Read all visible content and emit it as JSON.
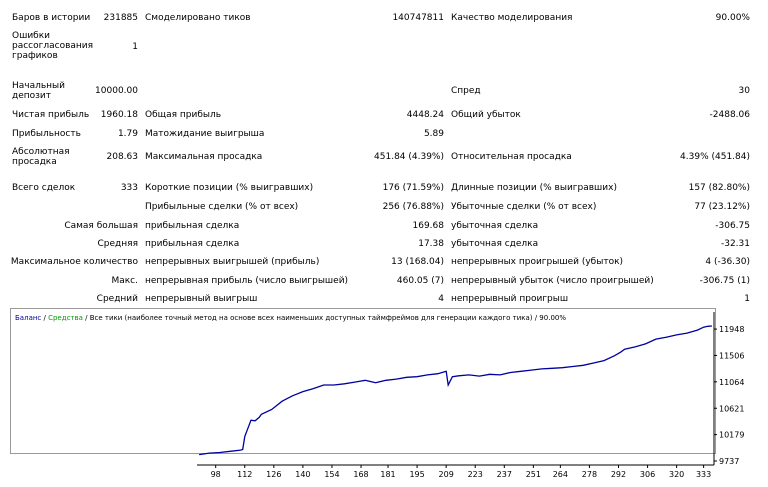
{
  "report": {
    "bars_label": "Баров в истории",
    "bars_value": "231885",
    "ticks_label": "Смоделировано тиков",
    "ticks_value": "140747811",
    "quality_label": "Качество моделирования",
    "quality_value": "90.00%",
    "errors_label": "Ошибки рассогласования графиков",
    "errors_value": "1",
    "deposit_label": "Начальный депозит",
    "deposit_value": "10000.00",
    "spread_label": "Спред",
    "spread_value": "30",
    "net_profit_label": "Чистая прибыль",
    "net_profit_value": "1960.18",
    "gross_profit_label": "Общая прибыль",
    "gross_profit_value": "4448.24",
    "gross_loss_label": "Общий убыток",
    "gross_loss_value": "-2488.06",
    "profit_factor_label": "Прибыльность",
    "profit_factor_value": "1.79",
    "expected_payoff_label": "Матожидание выигрыша",
    "expected_payoff_value": "5.89",
    "abs_dd_label": "Абсолютная просадка",
    "abs_dd_value": "208.63",
    "max_dd_label": "Максимальная просадка",
    "max_dd_value": "451.84 (4.39%)",
    "rel_dd_label": "Относительная просадка",
    "rel_dd_value": "4.39% (451.84)",
    "total_trades_label": "Всего сделок",
    "total_trades_value": "333",
    "short_label": "Короткие позиции (% выигравших)",
    "short_value": "176 (71.59%)",
    "long_label": "Длинные позиции (% выигравших)",
    "long_value": "157 (82.80%)",
    "profit_trades_label": "Прибыльные сделки (% от всех)",
    "profit_trades_value": "256 (76.88%)",
    "loss_trades_label": "Убыточные сделки (% от всех)",
    "loss_trades_value": "77 (23.12%)",
    "largest_label": "Самая большая",
    "largest_profit_label": "прибыльная сделка",
    "largest_profit_value": "169.68",
    "largest_loss_label": "убыточная сделка",
    "largest_loss_value": "-306.75",
    "average_label": "Средняя",
    "average_profit_label": "прибыльная сделка",
    "average_profit_value": "17.38",
    "average_loss_label": "убыточная сделка",
    "average_loss_value": "-32.31",
    "max_count_label": "Максимальное количество",
    "max_cons_wins_label": "непрерывных выигрышей (прибыль)",
    "max_cons_wins_value": "13 (168.04)",
    "max_cons_losses_label": "непрерывных проигрышей (убыток)",
    "max_cons_losses_value": "4 (-36.30)",
    "max_label": "Макс.",
    "max_cons_profit_label": "непрерывная прибыль (число выигрышей)",
    "max_cons_profit_value": "460.05 (7)",
    "max_cons_loss_label": "непрерывный убыток (число проигрышей)",
    "max_cons_loss_value": "-306.75 (1)",
    "avg_label": "Средний",
    "avg_cons_wins_label": "непрерывный выигрыш",
    "avg_cons_wins_value": "4",
    "avg_cons_losses_label": "непрерывный проигрыш",
    "avg_cons_losses_value": "1"
  },
  "chart_legend": {
    "balance": "Баланс",
    "sep1": " / ",
    "equity": "Средства",
    "sep2": " / ",
    "model": "Все тики (наиболее точный метод на основе всех наименьших доступных таймфреймов для генерации каждого тика)",
    "quality": " / 90.00%"
  },
  "colors": {
    "balance": "#0000a0",
    "equity": "#00a000",
    "text": "#000000"
  },
  "chart_data": {
    "type": "line",
    "ylim": [
      9737,
      12100
    ],
    "xlim": [
      89,
      338
    ],
    "y_ticks": [
      "11948",
      "11506",
      "11064",
      "10621",
      "10179",
      "9737"
    ],
    "x_ticks": [
      "98",
      "112",
      "126",
      "140",
      "154",
      "168",
      "181",
      "195",
      "209",
      "223",
      "237",
      "251",
      "264",
      "278",
      "292",
      "306",
      "320",
      "333"
    ],
    "x": [
      90,
      95,
      100,
      105,
      110,
      111,
      112,
      115,
      117,
      119,
      120,
      125,
      130,
      135,
      140,
      145,
      150,
      155,
      160,
      165,
      170,
      175,
      180,
      185,
      190,
      195,
      200,
      205,
      208,
      209,
      210,
      212,
      215,
      220,
      225,
      230,
      235,
      240,
      245,
      250,
      255,
      260,
      265,
      270,
      275,
      280,
      285,
      290,
      293,
      295,
      300,
      305,
      310,
      315,
      320,
      325,
      330,
      333,
      335,
      337
    ],
    "series": [
      {
        "name": "Баланс",
        "values": [
          9845,
          9870,
          9880,
          9900,
          9920,
          9930,
          10150,
          10420,
          10410,
          10470,
          10520,
          10600,
          10740,
          10830,
          10900,
          10950,
          11010,
          11010,
          11030,
          11060,
          11090,
          11050,
          11090,
          11110,
          11140,
          11150,
          11180,
          11200,
          11230,
          11240,
          11010,
          11150,
          11165,
          11180,
          11160,
          11190,
          11180,
          11220,
          11240,
          11260,
          11280,
          11290,
          11300,
          11320,
          11340,
          11380,
          11420,
          11500,
          11560,
          11610,
          11650,
          11700,
          11780,
          11810,
          11850,
          11880,
          11930,
          11980,
          11995,
          12000
        ]
      }
    ]
  }
}
